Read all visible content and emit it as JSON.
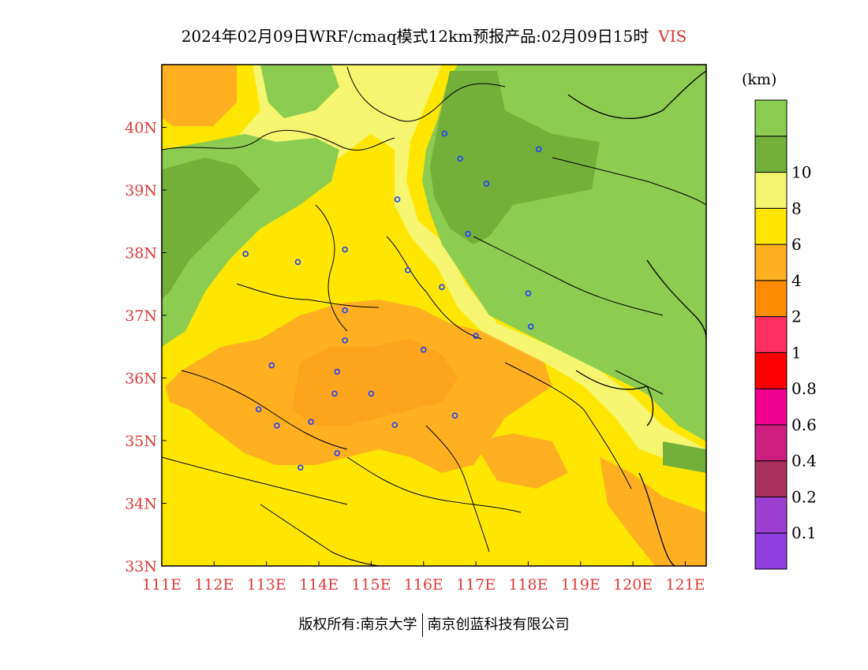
{
  "title": {
    "text": "2024年02月09日WRF/cmaq模式12km预报产品:02月09日15时",
    "variable": "VIS"
  },
  "map": {
    "lon_ticks": [
      "111E",
      "112E",
      "113E",
      "114E",
      "115E",
      "116E",
      "117E",
      "118E",
      "119E",
      "120E",
      "121E"
    ],
    "lat_ticks": [
      "40N",
      "39N",
      "38N",
      "37N",
      "36N",
      "35N",
      "34N",
      "33N"
    ],
    "lon_range": [
      111,
      121.4
    ],
    "lat_range": [
      33,
      41
    ],
    "stations": [
      {
        "lon": 116.4,
        "lat": 39.9
      },
      {
        "lon": 116.7,
        "lat": 39.5
      },
      {
        "lon": 117.2,
        "lat": 39.1
      },
      {
        "lon": 118.2,
        "lat": 39.65
      },
      {
        "lon": 115.5,
        "lat": 38.85
      },
      {
        "lon": 116.85,
        "lat": 38.3
      },
      {
        "lon": 112.6,
        "lat": 37.98
      },
      {
        "lon": 113.6,
        "lat": 37.85
      },
      {
        "lon": 114.5,
        "lat": 38.05
      },
      {
        "lon": 115.7,
        "lat": 37.72
      },
      {
        "lon": 116.35,
        "lat": 37.45
      },
      {
        "lon": 118.0,
        "lat": 37.35
      },
      {
        "lon": 118.05,
        "lat": 36.82
      },
      {
        "lon": 117.0,
        "lat": 36.67
      },
      {
        "lon": 114.5,
        "lat": 37.08
      },
      {
        "lon": 114.5,
        "lat": 36.6
      },
      {
        "lon": 116.0,
        "lat": 36.45
      },
      {
        "lon": 113.1,
        "lat": 36.2
      },
      {
        "lon": 114.35,
        "lat": 36.1
      },
      {
        "lon": 114.3,
        "lat": 35.75
      },
      {
        "lon": 115.0,
        "lat": 35.75
      },
      {
        "lon": 112.85,
        "lat": 35.5
      },
      {
        "lon": 113.2,
        "lat": 35.24
      },
      {
        "lon": 113.85,
        "lat": 35.3
      },
      {
        "lon": 115.45,
        "lat": 35.25
      },
      {
        "lon": 116.6,
        "lat": 35.4
      },
      {
        "lon": 114.35,
        "lat": 34.8
      },
      {
        "lon": 113.65,
        "lat": 34.57
      }
    ]
  },
  "legend": {
    "unit": "(km)",
    "colors": [
      "#8f3fe0",
      "#9b3fd0",
      "#a92f5c",
      "#cc1f80",
      "#f0008f",
      "#ff0000",
      "#ff3060",
      "#ff8c00",
      "#ffb020",
      "#ffe600",
      "#f5f570",
      "#72b03a",
      "#8ccc50"
    ],
    "labels": [
      "0.1",
      "0.2",
      "0.4",
      "0.6",
      "0.8",
      "1",
      "2",
      "4",
      "6",
      "8",
      "10"
    ]
  },
  "footer": {
    "left": "版权所有:南京大学",
    "right": "南京创蓝科技有限公司"
  }
}
